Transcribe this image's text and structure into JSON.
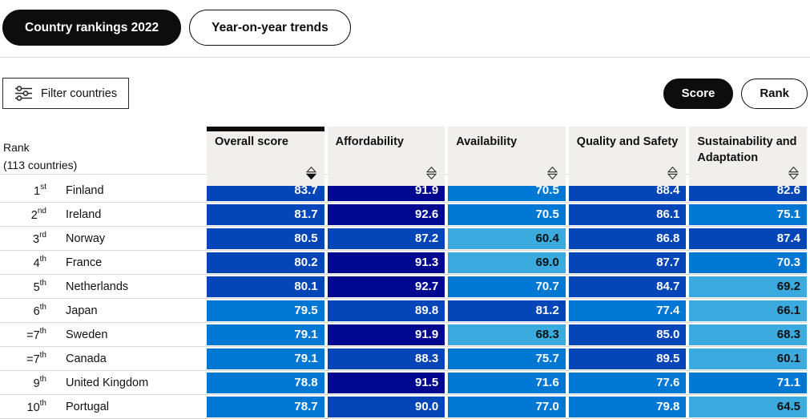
{
  "tabs": [
    {
      "label": "Country rankings 2022",
      "active": true
    },
    {
      "label": "Year-on-year trends",
      "active": false
    }
  ],
  "toolbar": {
    "filter_label": "Filter countries",
    "filter_icon": "sliders-icon",
    "toggle": [
      {
        "label": "Score",
        "active": true
      },
      {
        "label": "Rank",
        "active": false
      }
    ]
  },
  "table": {
    "rank_header": {
      "line1": "Rank",
      "line2": "(113 countries)"
    },
    "columns": [
      {
        "label": "Overall score",
        "sorted": "desc"
      },
      {
        "label": "Affordability",
        "sorted": "none"
      },
      {
        "label": "Availability",
        "sorted": "none"
      },
      {
        "label": "Quality and Safety",
        "sorted": "none"
      },
      {
        "label": "Sustainability and Adaptation",
        "sorted": "none"
      }
    ],
    "rows": [
      {
        "rank": "1",
        "ordinal": "st",
        "country": "Finland",
        "values": [
          "83.7",
          "91.9",
          "70.5",
          "88.4",
          "82.6"
        ]
      },
      {
        "rank": "2",
        "ordinal": "nd",
        "country": "Ireland",
        "values": [
          "81.7",
          "92.6",
          "70.5",
          "86.1",
          "75.1"
        ]
      },
      {
        "rank": "3",
        "ordinal": "rd",
        "country": "Norway",
        "values": [
          "80.5",
          "87.2",
          "60.4",
          "86.8",
          "87.4"
        ]
      },
      {
        "rank": "4",
        "ordinal": "th",
        "country": "France",
        "values": [
          "80.2",
          "91.3",
          "69.0",
          "87.7",
          "70.3"
        ]
      },
      {
        "rank": "5",
        "ordinal": "th",
        "country": "Netherlands",
        "values": [
          "80.1",
          "92.7",
          "70.7",
          "84.7",
          "69.2"
        ]
      },
      {
        "rank": "6",
        "ordinal": "th",
        "country": "Japan",
        "values": [
          "79.5",
          "89.8",
          "81.2",
          "77.4",
          "66.1"
        ]
      },
      {
        "rank": "=7",
        "ordinal": "th",
        "country": "Sweden",
        "values": [
          "79.1",
          "91.9",
          "68.3",
          "85.0",
          "68.3"
        ]
      },
      {
        "rank": "=7",
        "ordinal": "th",
        "country": "Canada",
        "values": [
          "79.1",
          "88.3",
          "75.7",
          "89.5",
          "60.1"
        ]
      },
      {
        "rank": "9",
        "ordinal": "th",
        "country": "United Kingdom",
        "values": [
          "78.8",
          "91.5",
          "71.6",
          "77.6",
          "71.1"
        ]
      },
      {
        "rank": "10",
        "ordinal": "th",
        "country": "Portugal",
        "values": [
          "78.7",
          "90.0",
          "77.0",
          "79.8",
          "64.5"
        ]
      }
    ]
  },
  "value_colors": {
    "navy": "#000890",
    "strong": "#0445B8",
    "medium": "#0077D2",
    "light": "#3BABDF",
    "navy_min": 91,
    "strong_min": 80,
    "medium_min": 70,
    "text_on_dark": "#ffffff",
    "text_on_light": "#111111"
  }
}
